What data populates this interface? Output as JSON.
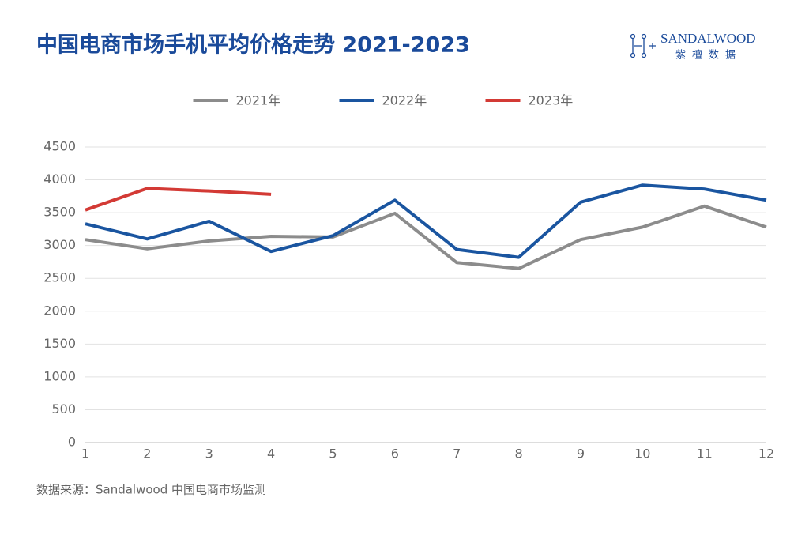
{
  "chart_data": {
    "type": "line",
    "title": "中国电商市场手机平均价格走势 2021-2023",
    "brand": "SANDALWOOD",
    "brand_sub": "紫檀数据",
    "source": "数据来源：Sandalwood 中国电商市场监测",
    "x": [
      1,
      2,
      3,
      4,
      5,
      6,
      7,
      8,
      9,
      10,
      11,
      12
    ],
    "xlim": [
      1,
      12
    ],
    "xticks": [
      1,
      2,
      3,
      4,
      5,
      6,
      7,
      8,
      9,
      10,
      11,
      12
    ],
    "ylim": [
      0,
      4500
    ],
    "yticks": [
      0,
      500,
      1000,
      1500,
      2000,
      2500,
      3000,
      3500,
      4000,
      4500
    ],
    "grid": true,
    "legend": "top",
    "series": [
      {
        "name": "2021年",
        "color": "#8c8c8c",
        "values": [
          3090,
          2950,
          3070,
          3140,
          3130,
          3490,
          2740,
          2650,
          3090,
          3280,
          3600,
          3280
        ]
      },
      {
        "name": "2022年",
        "color": "#1a55a0",
        "values": [
          3330,
          3100,
          3370,
          2910,
          3150,
          3690,
          2940,
          2820,
          3660,
          3920,
          3860,
          3690
        ]
      },
      {
        "name": "2023年",
        "color": "#d33a35",
        "values": [
          3540,
          3870,
          3830,
          3780,
          null,
          null,
          null,
          null,
          null,
          null,
          null,
          null
        ]
      }
    ]
  }
}
